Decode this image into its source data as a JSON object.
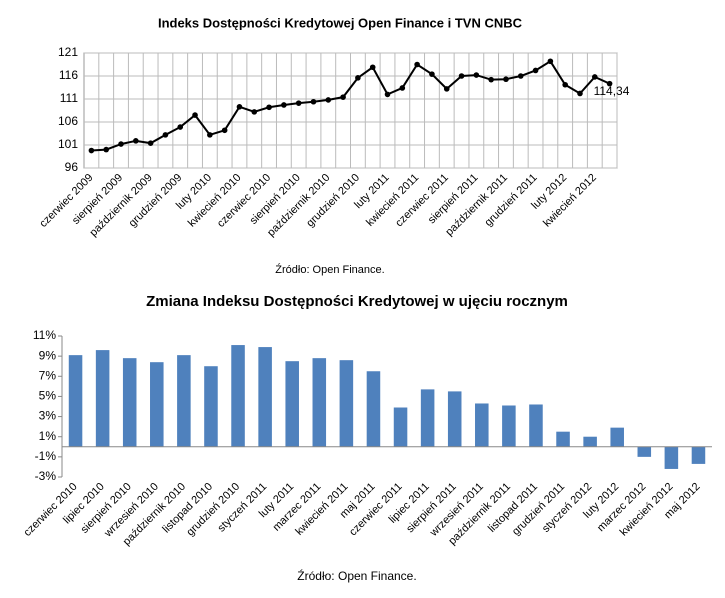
{
  "chart_data": [
    {
      "type": "line",
      "title": "Indeks Dostępności Kredytowej Open Finance i TVN CNBC",
      "source": "Źródło: Open Finance.",
      "categories": [
        "czerwiec 2009",
        null,
        "sierpień 2009",
        null,
        "październik 2009",
        null,
        "grudzień 2009",
        null,
        "luty 2010",
        null,
        "kwiecień 2010",
        null,
        "czerwiec 2010",
        null,
        "sierpień 2010",
        null,
        "październik 2010",
        null,
        "grudzień 2010",
        null,
        "luty 2011",
        null,
        "kwiecień 2011",
        null,
        "czerwiec 2011",
        null,
        "sierpień 2011",
        null,
        "październik 2011",
        null,
        "grudzień 2011",
        null,
        "luty 2012",
        null,
        "kwiecień 2012",
        null
      ],
      "values": [
        99.8,
        100.0,
        101.2,
        101.9,
        101.4,
        103.2,
        104.9,
        107.5,
        103.2,
        104.2,
        109.3,
        108.2,
        109.2,
        109.7,
        110.1,
        110.4,
        110.8,
        111.4,
        115.6,
        117.9,
        112.0,
        113.4,
        118.5,
        116.4,
        113.2,
        116.0,
        116.2,
        115.2,
        115.3,
        116.0,
        117.2,
        119.2,
        114.1,
        112.2,
        115.8,
        114.34
      ],
      "value_labels": [
        null,
        null,
        null,
        null,
        null,
        null,
        null,
        null,
        null,
        null,
        null,
        null,
        null,
        null,
        null,
        null,
        null,
        null,
        null,
        null,
        null,
        null,
        null,
        null,
        null,
        null,
        null,
        null,
        null,
        null,
        null,
        null,
        null,
        null,
        null,
        "114,34"
      ],
      "color": "#000000",
      "ylim": [
        96,
        121
      ],
      "yticks": [
        96,
        101,
        106,
        111,
        116,
        121
      ],
      "grid": true
    },
    {
      "type": "bar",
      "title": "Zmiana Indeksu Dostępności Kredytowej w ujęciu rocznym",
      "source": "Źródło: Open Finance.",
      "categories": [
        "czerwiec 2010",
        "lipiec 2010",
        "sierpień 2010",
        "wrzesień 2010",
        "październik 2010",
        "listopad 2010",
        "grudzień 2010",
        "styczeń 2011",
        "luty 2011",
        "marzec 2011",
        "kwiecień 2011",
        "maj 2011",
        "czerwiec 2011",
        "lipiec 2011",
        "sierpień 2011",
        "wrzesień 2011",
        "październik 2011",
        "listopad 2011",
        "grudzień 2011",
        "styczeń 2012",
        "luty 2012",
        "marzec 2012",
        "kwiecień 2012",
        "maj 2012"
      ],
      "values": [
        9.1,
        9.6,
        8.8,
        8.4,
        9.1,
        8.0,
        10.1,
        9.9,
        8.5,
        8.8,
        8.6,
        7.5,
        3.9,
        5.7,
        5.5,
        4.3,
        4.1,
        4.2,
        1.5,
        1.0,
        1.9,
        -1.0,
        -2.2,
        -1.7
      ],
      "color": "#4f81bd",
      "ylim": [
        -3,
        11
      ],
      "yticks": [
        {
          "value": -3,
          "label": "-3%"
        },
        {
          "value": -1,
          "label": "-1%"
        },
        {
          "value": 1,
          "label": "1%"
        },
        {
          "value": 3,
          "label": "3%"
        },
        {
          "value": 5,
          "label": "5%"
        },
        {
          "value": 7,
          "label": "7%"
        },
        {
          "value": 9,
          "label": "9%"
        },
        {
          "value": 11,
          "label": "11%"
        }
      ],
      "grid": false
    }
  ]
}
